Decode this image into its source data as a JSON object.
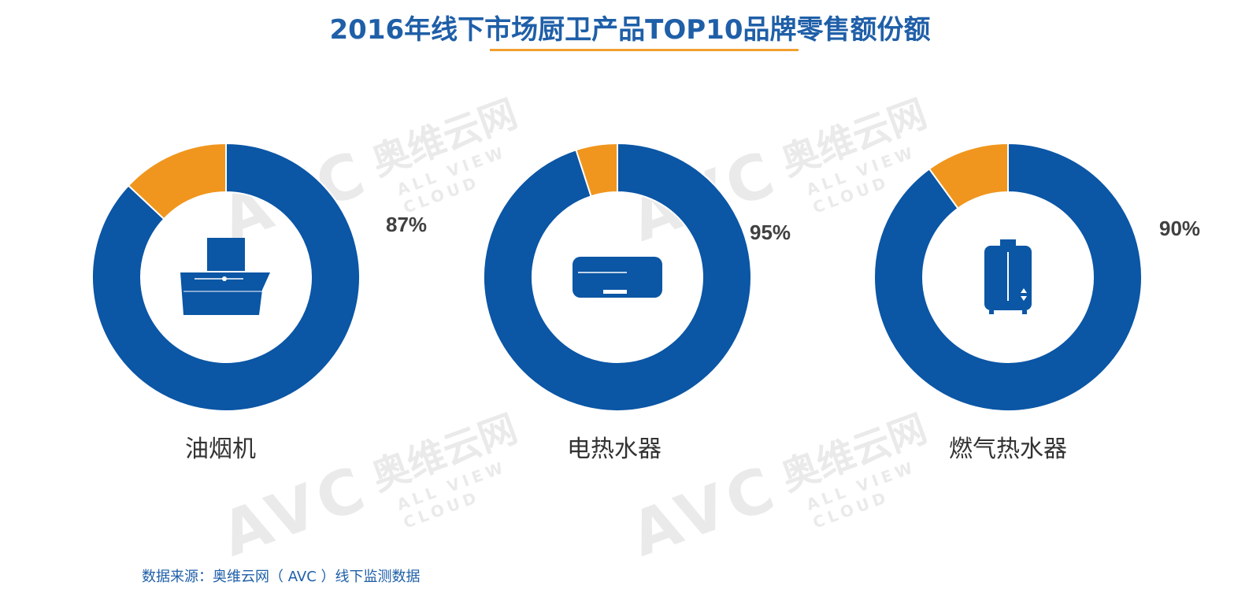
{
  "title": "2016年线下市场厨卫产品TOP10品牌零售额份额",
  "watermark": {
    "logo": "AVC",
    "cn": "奥维云网",
    "en": "ALL VIEW CLOUD"
  },
  "source": "数据来源：奥维云网（ AVC ）线下监测数据",
  "colors": {
    "primary": "#0b56a5",
    "secondary": "#f0961e",
    "title": "#1f5fa8",
    "underline": "#f0a030"
  },
  "chart_data": [
    {
      "type": "pie",
      "category": "油烟机",
      "values": [
        87,
        13
      ],
      "label": "87%",
      "icon": "range-hood-icon"
    },
    {
      "type": "pie",
      "category": "电热水器",
      "values": [
        95,
        5
      ],
      "label": "95%",
      "icon": "electric-water-heater-icon"
    },
    {
      "type": "pie",
      "category": "燃气热水器",
      "values": [
        90,
        10
      ],
      "label": "90%",
      "icon": "gas-water-heater-icon"
    }
  ]
}
